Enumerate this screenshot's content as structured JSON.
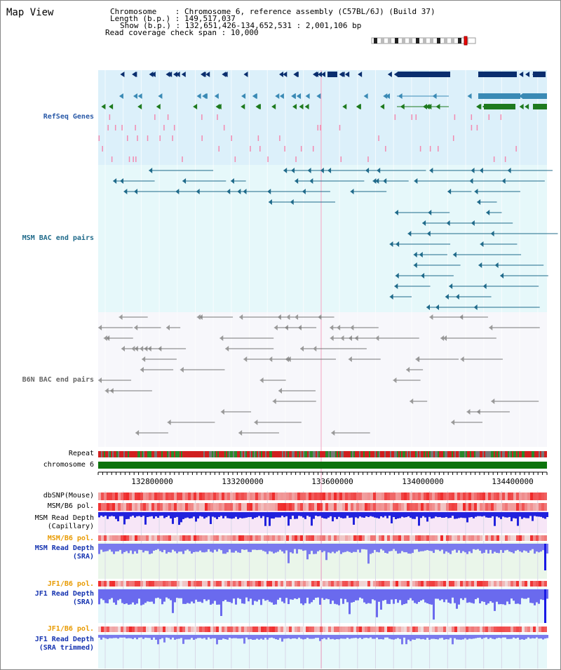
{
  "title": "Map View",
  "info": {
    "chromosome_label": "Chromosome",
    "chromosome_value": "Chromosome 6, reference assembly (C57BL/6J) (Build 37)",
    "length_label": "Length (b.p.)",
    "length_value": "149,517,037",
    "show_label": "Show (b.p.)",
    "show_value": "132,651,426-134,652,531 : 2,001,106 bp",
    "coverage_label": "Read coverage check span",
    "coverage_value": "10,000"
  },
  "tracks": {
    "refseq": "RefSeq Genes",
    "msm_bac": "MSM BAC end pairs",
    "b6n_bac": "B6N BAC end pairs",
    "repeat": "Repeat",
    "chromosome": "chromosome 6",
    "dbsnp": "dbSNP(Mouse)",
    "msm_pol": "MSM/B6 pol.",
    "msm_depth_cap_1": "MSM Read Depth",
    "msm_depth_cap_2": "(Capillary)",
    "msm_pol2": "MSM/B6 pol.",
    "msm_depth_sra_1": "MSM Read Depth",
    "msm_depth_sra_2": "(SRA)",
    "jf1_pol": "JF1/B6 pol.",
    "jf1_depth_1": "JF1 Read Depth",
    "jf1_depth_2": "(SRA)",
    "jf1_pol2": "JF1/B6 pol.",
    "jf1_trim_1": "JF1 Read Depth",
    "jf1_trim_2": "(SRA trimmed)"
  },
  "axis_ticks": [
    "132800000",
    "133200000",
    "133600000",
    "134000000",
    "134400000"
  ],
  "colors": {
    "refseq_bg": "#dcf0fa",
    "msm_bg": "#e6f8fa",
    "b6n_bg": "#f7f7fb",
    "gene_dark": "#0a2e6e",
    "gene_mid": "#3a8ab5",
    "gene_green": "#1e7a1e",
    "msm_feature": "#1f6a8a",
    "b6n_feature": "#777777",
    "chromosome": "#0b730b",
    "depth_blue": "#1a1ae6"
  }
}
